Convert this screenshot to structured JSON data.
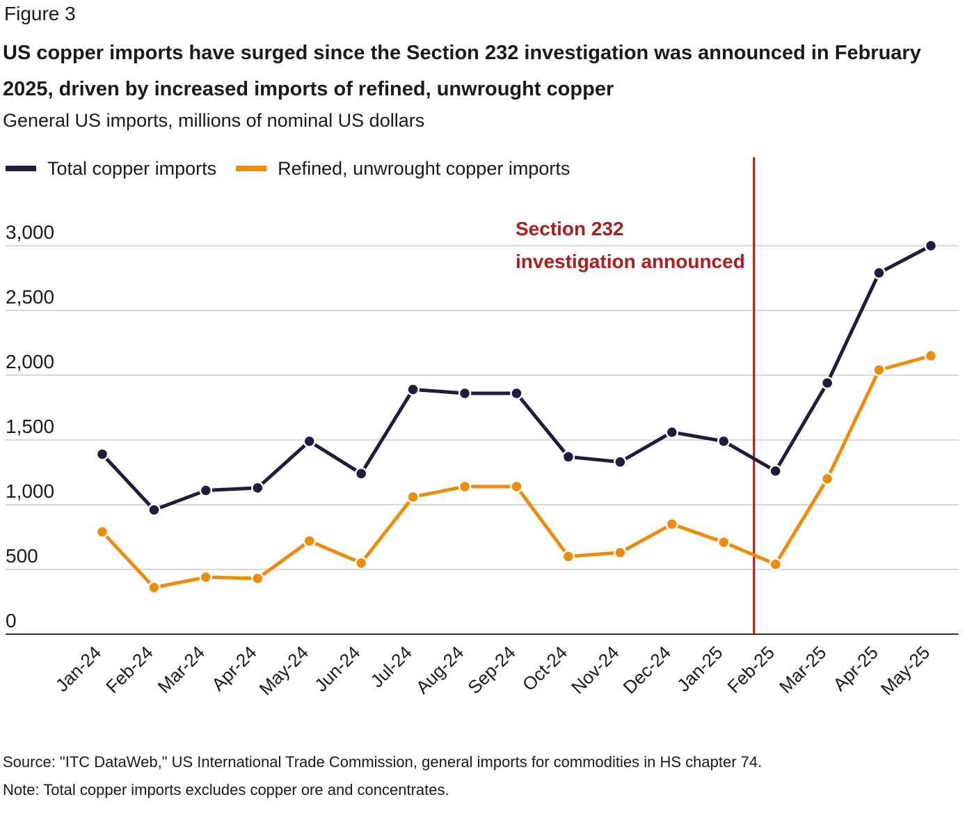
{
  "figure_label": "Figure 3",
  "title": "US copper imports have surged since the Section 232 investigation was announced in February 2025, driven by increased imports of refined, unwrought copper",
  "subtitle": "General US imports, millions of nominal US dollars",
  "source": "Source: \"ITC DataWeb,\" US International Trade Commission, general imports for commodities in HS chapter 74.",
  "note": "Note: Total copper imports excludes copper ore and concentrates.",
  "colors": {
    "total": "#1e1d3a",
    "refined": "#ee8c0e",
    "annotation": "#b01c1c",
    "grid": "#d9d9d9",
    "axis": "#333333"
  },
  "chart_data": {
    "type": "line",
    "categories": [
      "Jan-24",
      "Feb-24",
      "Mar-24",
      "Apr-24",
      "May-24",
      "Jun-24",
      "Jul-24",
      "Aug-24",
      "Sep-24",
      "Oct-24",
      "Nov-24",
      "Dec-24",
      "Jan-25",
      "Feb-25",
      "Mar-25",
      "Apr-25",
      "May-25"
    ],
    "series": [
      {
        "name": "Total copper imports",
        "color": "#1e1d3a",
        "values": [
          1390,
          960,
          1110,
          1130,
          1490,
          1240,
          1890,
          1860,
          1860,
          1370,
          1330,
          1560,
          1490,
          1260,
          1940,
          2790,
          3000
        ]
      },
      {
        "name": "Refined, unwrought copper imports",
        "color": "#ee8c0e",
        "values": [
          790,
          360,
          440,
          430,
          720,
          550,
          1060,
          1140,
          1140,
          600,
          630,
          850,
          710,
          540,
          1200,
          2040,
          2150
        ]
      }
    ],
    "yticks": [
      "0",
      "500",
      "1,000",
      "1,500",
      "2,000",
      "2,500",
      "3,000"
    ],
    "ylim": [
      0,
      3000
    ],
    "grid": true,
    "legend": "top-left",
    "annotation": {
      "lines": [
        "Section 232",
        "investigation announced"
      ],
      "at": "Feb-25"
    }
  }
}
